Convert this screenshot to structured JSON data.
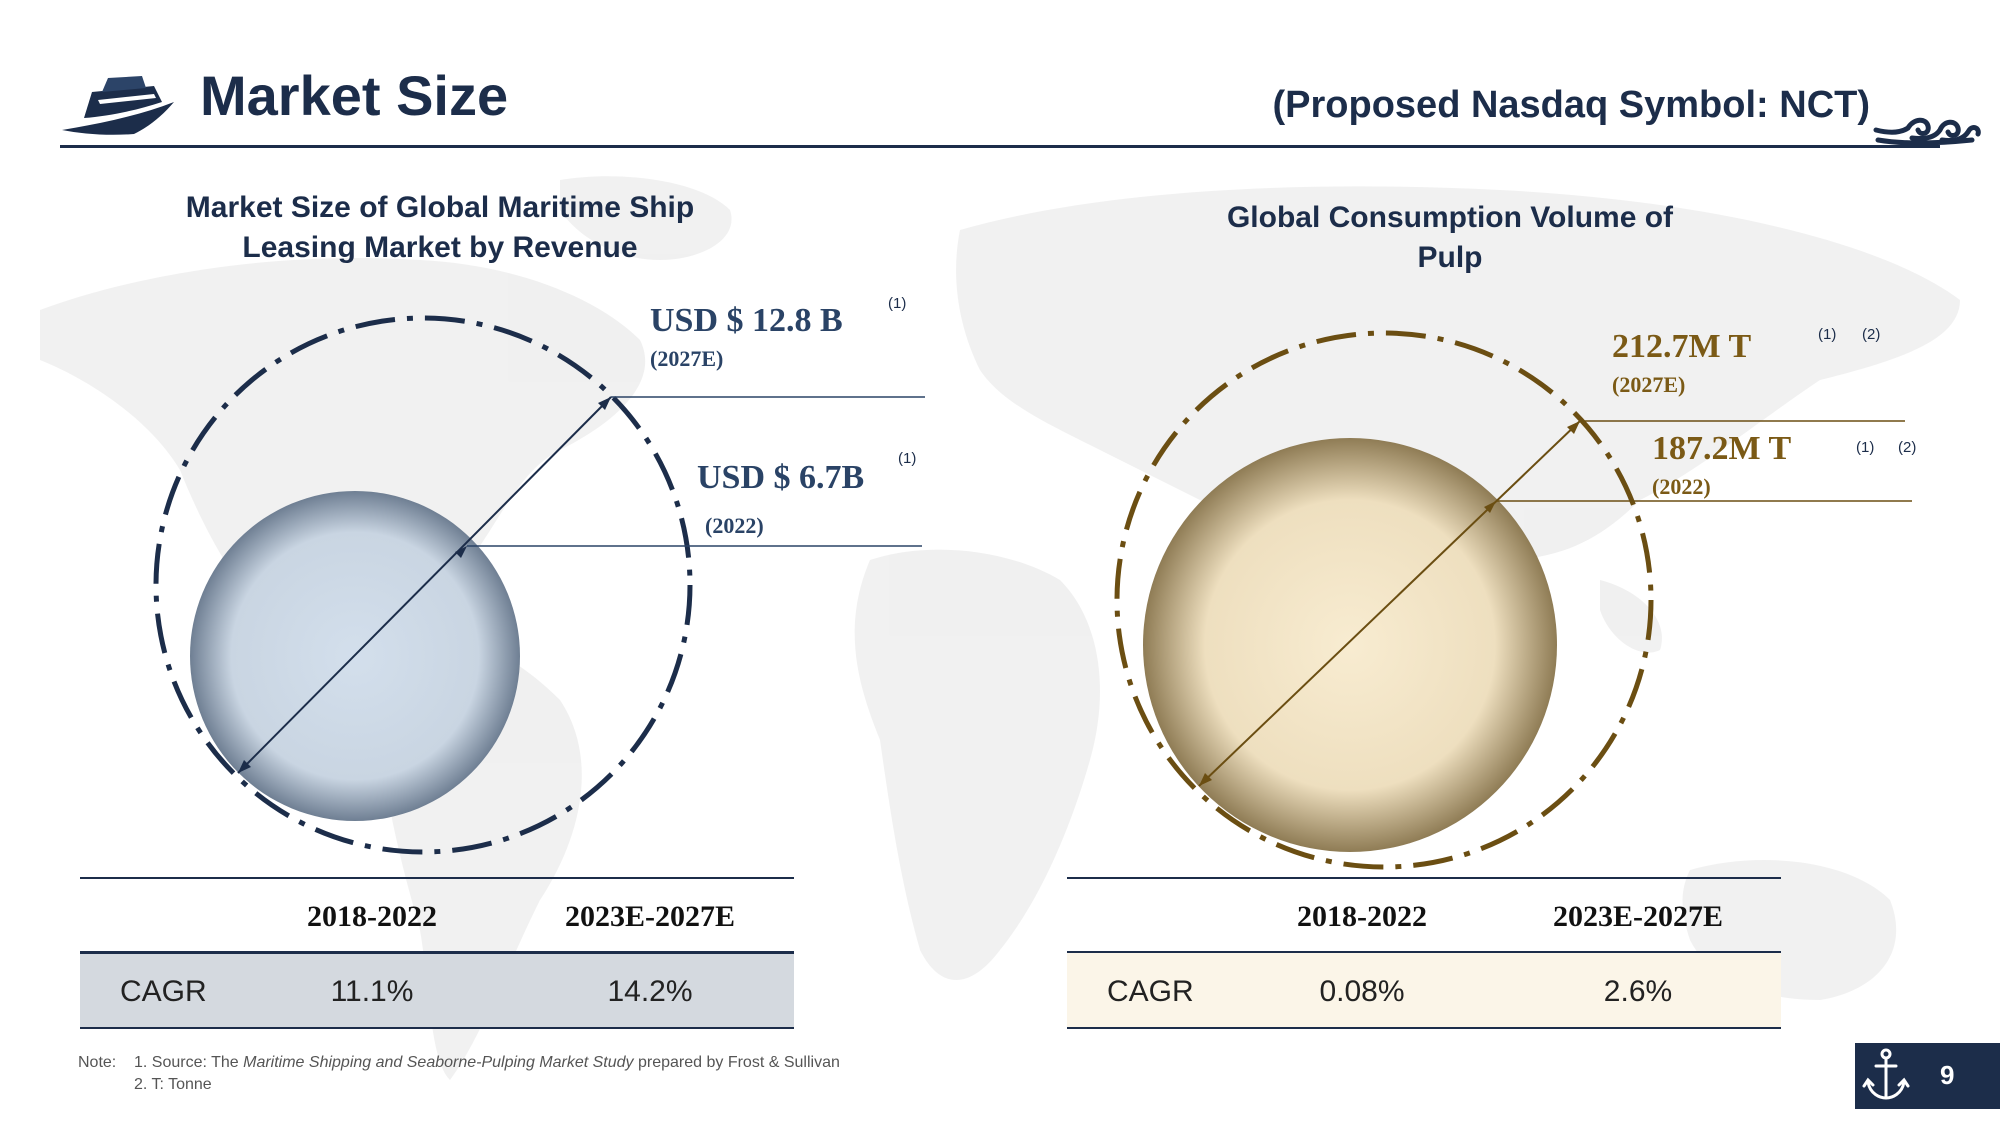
{
  "header": {
    "title": "Market Size",
    "symbol": "(Proposed Nasdaq Symbol:  NCT)"
  },
  "left_panel": {
    "title_line1": "Market Size of Global Maritime Ship",
    "title_line2": "Leasing Market by Revenue",
    "outer_value": "USD $ 12.8 B",
    "outer_year": "(2027E)",
    "outer_footnote": "(1)",
    "inner_value": "USD $ 6.7B",
    "inner_year": "(2022)",
    "inner_footnote": "(1)",
    "table": {
      "col1": "2018-2022",
      "col2": "2023E-2027E",
      "row_label": "CAGR",
      "val1": "11.1%",
      "val2": "14.2%"
    }
  },
  "right_panel": {
    "title_line1": "Global Consumption Volume of",
    "title_line2": "Pulp",
    "outer_value": "212.7M T",
    "outer_year": "(2027E)",
    "outer_footnote1": "(1)",
    "outer_footnote2": "(2)",
    "inner_value": "187.2M T",
    "inner_year": "(2022)",
    "inner_footnote1": "(1)",
    "inner_footnote2": "(2)",
    "table": {
      "col1": "2018-2022",
      "col2": "2023E-2027E",
      "row_label": "CAGR",
      "val1": "0.08%",
      "val2": "2.6%"
    }
  },
  "notes": {
    "label": "Note:",
    "line1_prefix": "1. Source: The ",
    "line1_italic": "Maritime Shipping and Seaborne-Pulping Market Study",
    "line1_suffix": " prepared by Frost & Sullivan",
    "line2": "2. T: Tonne"
  },
  "footer": {
    "page_number": "9"
  },
  "icons": {
    "logo": "ship-logo-icon",
    "waves": "wave-icon",
    "anchor": "anchor-icon"
  },
  "colors": {
    "navy": "#1c2d4a",
    "brown": "#6b4e12",
    "left_table_row": "#d4d9df",
    "right_table_row": "#fbf5e8"
  }
}
